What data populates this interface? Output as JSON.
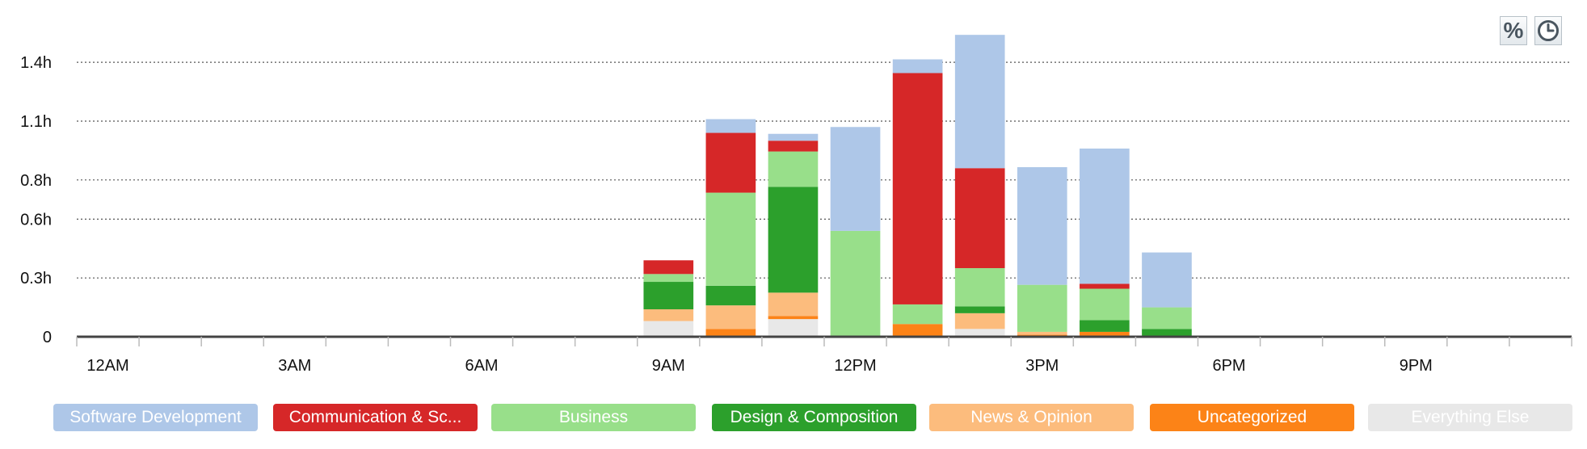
{
  "chart_data": {
    "type": "bar",
    "stacked": true,
    "title": "",
    "xlabel": "",
    "ylabel": "",
    "ylim": [
      0,
      1.45
    ],
    "y_ticks": [
      {
        "value": 0,
        "label": "0"
      },
      {
        "value": 0.3,
        "label": "0.3h"
      },
      {
        "value": 0.6,
        "label": "0.6h"
      },
      {
        "value": 0.8,
        "label": "0.8h"
      },
      {
        "value": 1.1,
        "label": "1.1h"
      },
      {
        "value": 1.4,
        "label": "1.4h"
      }
    ],
    "hour_labels": [
      {
        "hour": 0,
        "label": "12AM"
      },
      {
        "hour": 3,
        "label": "3AM"
      },
      {
        "hour": 6,
        "label": "6AM"
      },
      {
        "hour": 9,
        "label": "9AM"
      },
      {
        "hour": 12,
        "label": "12PM"
      },
      {
        "hour": 15,
        "label": "3PM"
      },
      {
        "hour": 18,
        "label": "6PM"
      },
      {
        "hour": 21,
        "label": "9PM"
      }
    ],
    "categories": [
      9,
      10,
      11,
      12,
      13,
      14,
      15,
      16,
      17
    ],
    "series": [
      {
        "name": "Everything Else",
        "color": "#e8e8e8",
        "values": [
          0.08,
          0.0,
          0.09,
          0.0,
          0.0,
          0.04,
          0.0,
          0.0,
          0.0
        ]
      },
      {
        "name": "Uncategorized",
        "color": "#fc8317",
        "values": [
          0.0,
          0.04,
          0.015,
          0.0,
          0.065,
          0.0,
          0.01,
          0.025,
          0.0
        ]
      },
      {
        "name": "News & Opinion",
        "color": "#fcbc7d",
        "values": [
          0.06,
          0.12,
          0.12,
          0.0,
          0.0,
          0.08,
          0.015,
          0.0,
          0.0
        ]
      },
      {
        "name": "Design & Composition",
        "color": "#2ca02c",
        "values": [
          0.14,
          0.1,
          0.54,
          0.0,
          0.0,
          0.035,
          0.0,
          0.06,
          0.04
        ]
      },
      {
        "name": "Business",
        "color": "#98df8a",
        "values": [
          0.04,
          0.475,
          0.18,
          0.54,
          0.1,
          0.195,
          0.24,
          0.16,
          0.11
        ]
      },
      {
        "name": "Communication & Scheduling",
        "color": "#d62728",
        "values": [
          0.07,
          0.305,
          0.055,
          0.0,
          1.18,
          0.51,
          0.0,
          0.025,
          0.0
        ]
      },
      {
        "name": "Software Development",
        "color": "#aec7e8",
        "values": [
          0.0,
          0.07,
          0.035,
          0.53,
          0.07,
          0.68,
          0.6,
          0.69,
          0.28
        ]
      }
    ]
  },
  "legend": [
    {
      "label": "Software Development",
      "color": "#aec7e8",
      "text_color": "#ffffff"
    },
    {
      "label": "Communication & Sc...",
      "color": "#d62728",
      "text_color": "#ffffff"
    },
    {
      "label": "Business",
      "color": "#98df8a",
      "text_color": "#ffffff"
    },
    {
      "label": "Design & Composition",
      "color": "#2ca02c",
      "text_color": "#ffffff"
    },
    {
      "label": "News & Opinion",
      "color": "#fcbc7d",
      "text_color": "#ffffff"
    },
    {
      "label": "Uncategorized",
      "color": "#fc8317",
      "text_color": "#ffffff"
    },
    {
      "label": "Everything Else",
      "color": "#e8e8e8",
      "text_color": "#ffffff"
    }
  ],
  "toolbar": {
    "percent_symbol": "%"
  }
}
